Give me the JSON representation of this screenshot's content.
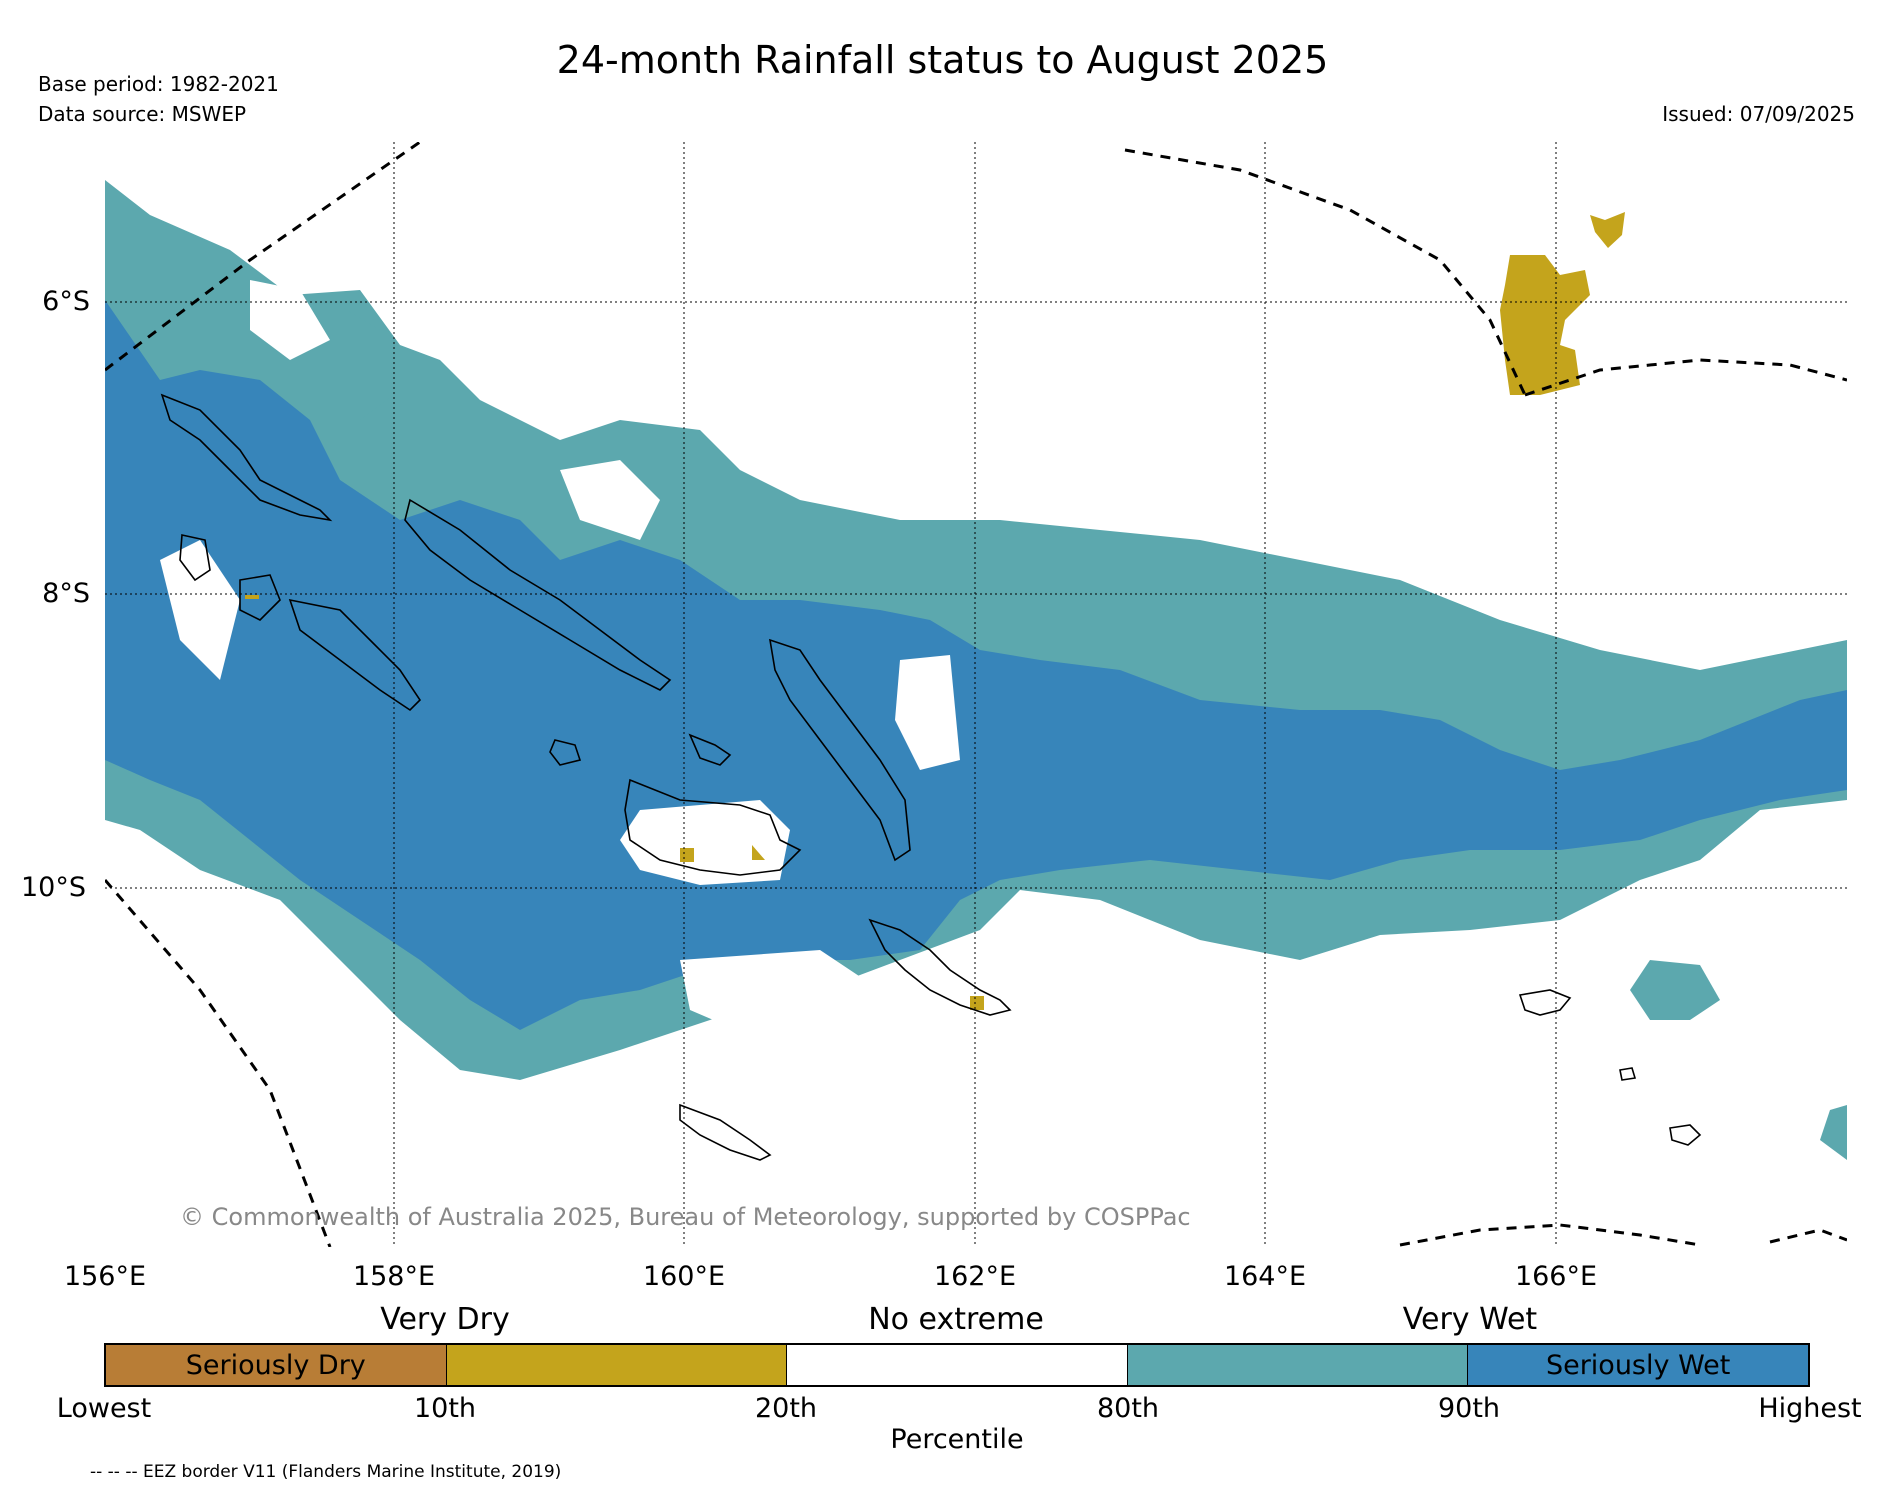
{
  "header": {
    "title": "24-month Rainfall status to August 2025",
    "base_period": "Base period: 1982-2021",
    "data_source": "Data source: MSWEP",
    "issued": "Issued: 07/09/2025"
  },
  "map": {
    "lat_labels": [
      "6°S",
      "8°S",
      "10°S"
    ],
    "lon_labels": [
      "156°E",
      "158°E",
      "160°E",
      "162°E",
      "164°E",
      "166°E"
    ],
    "copyright": "© Commonwealth of Australia 2025, Bureau of Meteorology, supported by COSPPac",
    "colors": {
      "seriously_dry": "#b87d36",
      "very_dry": "#c4a41c",
      "no_extreme": "#ffffff",
      "very_wet": "#5ca8ae",
      "seriously_wet": "#3785ba"
    }
  },
  "legend": {
    "category_labels": [
      "Very Dry",
      "No extreme",
      "Very Wet"
    ],
    "bar_labels": [
      "Seriously Dry",
      "Seriously Wet"
    ],
    "percentiles": [
      "Lowest",
      "10th",
      "20th",
      "80th",
      "90th",
      "Highest"
    ],
    "axis_label": "Percentile",
    "eez_note": "-- -- -- EEZ border V11 (Flanders Marine Institute, 2019)"
  }
}
